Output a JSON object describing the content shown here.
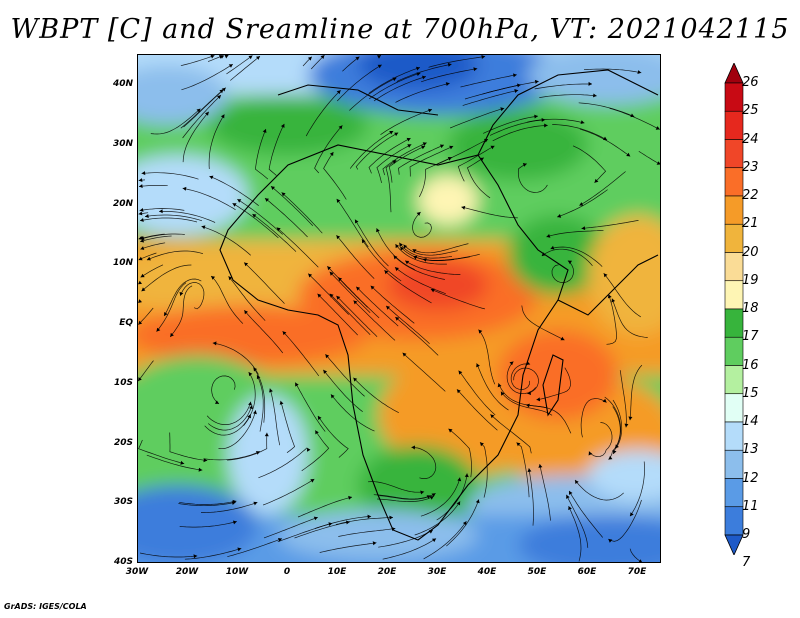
{
  "title": "WBPT [C] and Sreamline at 700hPa, VT: 2021042115",
  "lat_labels": [
    "40N",
    "30N",
    "20N",
    "10N",
    "EQ",
    "10S",
    "20S",
    "30S",
    "40S"
  ],
  "lon_labels": [
    "30W",
    "20W",
    "10W",
    "0",
    "10E",
    "20E",
    "30E",
    "40E",
    "50E",
    "60E",
    "70E"
  ],
  "colorbar": {
    "labels": [
      "26",
      "25",
      "24",
      "23",
      "22",
      "21",
      "20",
      "19",
      "18",
      "17",
      "16",
      "15",
      "14",
      "13",
      "12",
      "11",
      "9",
      "7"
    ],
    "colors": [
      "#a0000e",
      "#c80a14",
      "#e6281e",
      "#f04628",
      "#fa6e28",
      "#f59b28",
      "#f0b43c",
      "#fadc96",
      "#fef5b4",
      "#37b43c",
      "#5fcd5f",
      "#b4f0a0",
      "#e1fff5",
      "#b4dcfa",
      "#8cbeec",
      "#5a9be6",
      "#3c7ddc",
      "#1e5ac8"
    ]
  },
  "footer": "GrADS: IGES/COLA"
}
